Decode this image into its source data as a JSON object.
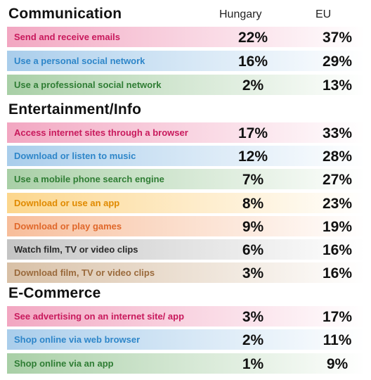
{
  "columns": {
    "hungary": "Hungary",
    "eu": "EU"
  },
  "chart_data": {
    "type": "table",
    "series": [
      {
        "name": "Hungary",
        "values": [
          22,
          16,
          2,
          17,
          12,
          7,
          8,
          9,
          6,
          3,
          3,
          2,
          1
        ]
      },
      {
        "name": "EU",
        "values": [
          37,
          29,
          13,
          33,
          28,
          27,
          23,
          19,
          16,
          16,
          17,
          11,
          9
        ]
      }
    ],
    "categories": [
      "Send and receive emails",
      "Use a personal social network",
      "Use a professional social network",
      "Access internet sites through a browser",
      "Download or listen to music",
      "Use a mobile phone search engine",
      "Download or use an app",
      "Download or play games",
      "Watch film, TV or video clips",
      "Download film, TV or video clips",
      "See advertising on an internet site/ app",
      "Shop online via web browser",
      "Shop online via an app"
    ]
  },
  "sections": [
    {
      "title": "Communication",
      "rows": [
        {
          "label": "Send and receive emails",
          "hungary": "22%",
          "eu": "37%",
          "color": "#c8195c",
          "band": "#f2a6c1"
        },
        {
          "label": "Use a personal social network",
          "hungary": "16%",
          "eu": "29%",
          "color": "#2e86c9",
          "band": "#a9cdeb"
        },
        {
          "label": "Use a professional social network",
          "hungary": "2%",
          "eu": "13%",
          "color": "#2f7d34",
          "band": "#a8cfa6"
        }
      ]
    },
    {
      "title": "Entertainment/Info",
      "rows": [
        {
          "label": "Access internet sites through a browser",
          "hungary": "17%",
          "eu": "33%",
          "color": "#c8195c",
          "band": "#f2a6c1"
        },
        {
          "label": "Download or listen to music",
          "hungary": "12%",
          "eu": "28%",
          "color": "#2e86c9",
          "band": "#a9cdeb"
        },
        {
          "label": "Use a mobile phone search engine",
          "hungary": "7%",
          "eu": "27%",
          "color": "#2f7d34",
          "band": "#a8cfa6"
        },
        {
          "label": "Download or use an app",
          "hungary": "8%",
          "eu": "23%",
          "color": "#e08a00",
          "band": "#fcd68c"
        },
        {
          "label": "Download or play games",
          "hungary": "9%",
          "eu": "19%",
          "color": "#e0682b",
          "band": "#f7bd9a"
        },
        {
          "label": "Watch film, TV or video clips",
          "hungary": "6%",
          "eu": "16%",
          "color": "#2a2a2a",
          "band": "#c4c4c4"
        },
        {
          "label": "Download film, TV or video clips",
          "hungary": "3%",
          "eu": "16%",
          "color": "#9a6a3c",
          "band": "#d8c0a6"
        }
      ]
    },
    {
      "title": "E-Commerce",
      "rows": [
        {
          "label": "See advertising on an internet site/ app",
          "hungary": "3%",
          "eu": "17%",
          "color": "#c8195c",
          "band": "#f2a6c1"
        },
        {
          "label": "Shop online via web browser",
          "hungary": "2%",
          "eu": "11%",
          "color": "#2e86c9",
          "band": "#a9cdeb"
        },
        {
          "label": "Shop online via an app",
          "hungary": "1%",
          "eu": "9%",
          "color": "#2f7d34",
          "band": "#a8cfa6"
        }
      ]
    }
  ]
}
